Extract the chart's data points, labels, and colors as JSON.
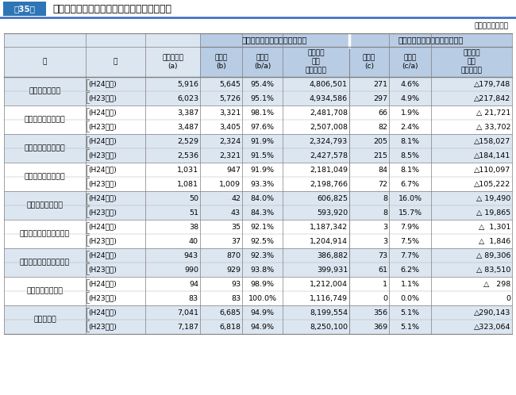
{
  "title_box": "第35表",
  "title_text": "第三セクター等の純資産又は正味財産の状況",
  "unit_text": "（単位　百万円）",
  "group_header1": "資産が負債を上回っている法人",
  "group_header2": "負債が資産を上回っている法人",
  "col_headers": [
    "区",
    "分",
    "全体法人数\n(a)",
    "法人数\n(b)",
    "構成比\n(b/a)",
    "純資産額\n又は\n正味財産額",
    "法人数\n(c)",
    "構成比\n(c/a)",
    "純資産額\n又は\n正味財産額"
  ],
  "row_pair_labels": [
    "第三セクター計",
    "社団法人・財団法人",
    "会　社　法　法　人",
    "地　方　三　公　社",
    "地方住宅供給公社",
    "地　方　道　路　公　社",
    "土　地　開　発　公　社",
    "地方独立行政法人",
    "総　　　計"
  ],
  "rows": [
    [
      "(H24調査)",
      "5,916",
      "5,645",
      "95.4%",
      "4,806,501",
      "271",
      "4.6%",
      "△179,748"
    ],
    [
      "(H23調査)",
      "6,023",
      "5,726",
      "95.1%",
      "4,934,586",
      "297",
      "4.9%",
      "△217,842"
    ],
    [
      "(H24調査)",
      "3,387",
      "3,321",
      "98.1%",
      "2,481,708",
      "66",
      "1.9%",
      "△ 21,721"
    ],
    [
      "(H23調査)",
      "3,487",
      "3,405",
      "97.6%",
      "2,507,008",
      "82",
      "2.4%",
      "△ 33,702"
    ],
    [
      "(H24調査)",
      "2,529",
      "2,324",
      "91.9%",
      "2,324,793",
      "205",
      "8.1%",
      "△158,027"
    ],
    [
      "(H23調査)",
      "2,536",
      "2,321",
      "91.5%",
      "2,427,578",
      "215",
      "8.5%",
      "△184,141"
    ],
    [
      "(H24調査)",
      "1,031",
      "947",
      "91.9%",
      "2,181,049",
      "84",
      "8.1%",
      "△110,097"
    ],
    [
      "(H23調査)",
      "1,081",
      "1,009",
      "93.3%",
      "2,198,766",
      "72",
      "6.7%",
      "△105,222"
    ],
    [
      "(H24調査)",
      "50",
      "42",
      "84.0%",
      "606,825",
      "8",
      "16.0%",
      "△ 19,490"
    ],
    [
      "(H23調査)",
      "51",
      "43",
      "84.3%",
      "593,920",
      "8",
      "15.7%",
      "△ 19,865"
    ],
    [
      "(H24調査)",
      "38",
      "35",
      "92.1%",
      "1,187,342",
      "3",
      "7.9%",
      "△  1,301"
    ],
    [
      "(H23調査)",
      "40",
      "37",
      "92.5%",
      "1,204,914",
      "3",
      "7.5%",
      "△  1,846"
    ],
    [
      "(H24調査)",
      "943",
      "870",
      "92.3%",
      "386,882",
      "73",
      "7.7%",
      "△ 89,306"
    ],
    [
      "(H23調査)",
      "990",
      "929",
      "93.8%",
      "399,931",
      "61",
      "6.2%",
      "△ 83,510"
    ],
    [
      "(H24調査)",
      "94",
      "93",
      "98.9%",
      "1,212,004",
      "1",
      "1.1%",
      "△   298"
    ],
    [
      "(H23調査)",
      "83",
      "83",
      "100.0%",
      "1,116,749",
      "0",
      "0.0%",
      "0"
    ],
    [
      "(H24調査)",
      "7,041",
      "6,685",
      "94.9%",
      "8,199,554",
      "356",
      "5.1%",
      "△290,143"
    ],
    [
      "(H23調査)",
      "7,187",
      "6,818",
      "94.9%",
      "8,250,100",
      "369",
      "5.1%",
      "△323,064"
    ]
  ],
  "bg_title_box": "#2e75b6",
  "bg_header_blue": "#b8cce4",
  "bg_row_light": "#dce6f1",
  "bg_row_white": "#ffffff",
  "title_line_color": "#4472c4",
  "grid_color_major": "#7f7f7f",
  "grid_color_minor": "#aaaaaa",
  "fig_width": 6.5,
  "fig_height": 4.98
}
